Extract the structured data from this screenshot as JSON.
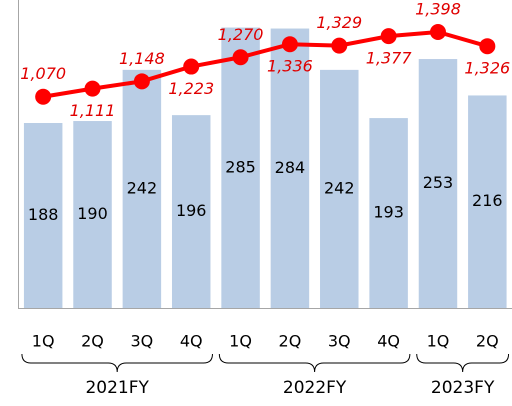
{
  "chart_data": {
    "type": "bar_line",
    "categories": [
      "1Q",
      "2Q",
      "3Q",
      "4Q",
      "1Q",
      "2Q",
      "3Q",
      "4Q",
      "1Q",
      "2Q"
    ],
    "category_groups": [
      "2021FY",
      "2021FY",
      "2021FY",
      "2021FY",
      "2022FY",
      "2022FY",
      "2022FY",
      "2022FY",
      "2023FY",
      "2023FY"
    ],
    "series": [
      {
        "type": "bar",
        "color": "#b9cde5",
        "values": [
          188,
          190,
          242,
          196,
          285,
          284,
          242,
          193,
          253,
          216
        ]
      },
      {
        "type": "line",
        "axis": "y2",
        "color": "#ff0000",
        "values": [
          1070,
          1111,
          1148,
          1223,
          1270,
          1336,
          1329,
          1377,
          1398,
          1326
        ],
        "value_labels": [
          "1,070",
          "1,111",
          "1,148",
          "1,223",
          "1,270",
          "1,336",
          "1,329",
          "1,377",
          "1,398",
          "1,326"
        ]
      }
    ],
    "ylim": [
      0,
      313
    ],
    "y2lim": [
      0,
      1560
    ]
  }
}
